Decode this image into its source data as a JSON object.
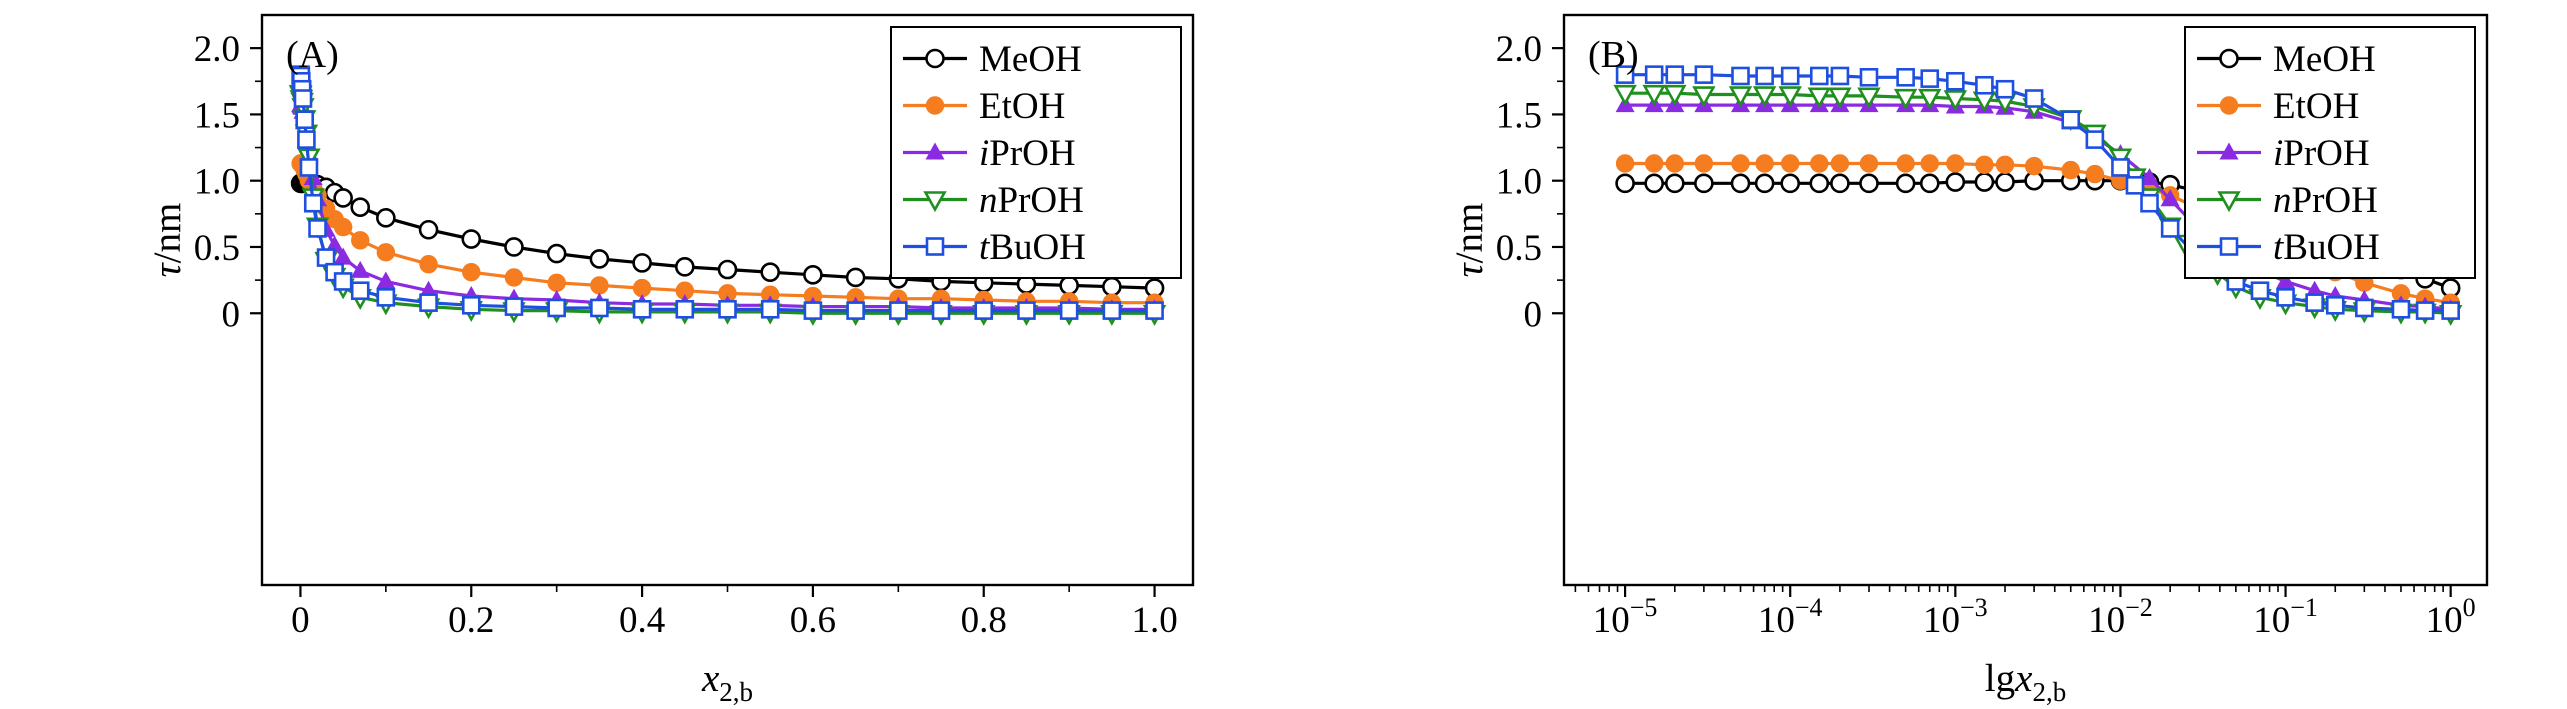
{
  "figure": {
    "background": "#ffffff",
    "font_color": "#000000"
  },
  "chart_data": [
    {
      "id": "A",
      "type": "line",
      "panel_label": "(A)",
      "x_scale": "linear",
      "xlim": [
        -0.045,
        1.045
      ],
      "ylim": [
        -2.05,
        2.25
      ],
      "x_ticks": [
        0,
        0.2,
        0.4,
        0.6,
        0.8,
        1.0
      ],
      "x_tick_labels": [
        "0",
        "0.2",
        "0.4",
        "0.6",
        "0.8",
        "1.0"
      ],
      "y_ticks": [
        0,
        0.5,
        1.0,
        1.5,
        2.0
      ],
      "y_tick_labels": [
        "0",
        "0.5",
        "1.0",
        "1.5",
        "2.0"
      ],
      "xlabel": {
        "roman": "",
        "italic": "x",
        "sub": "2,b"
      },
      "ylabel": {
        "italic": "τ",
        "roman": "/nm"
      },
      "legend_position": "upper right",
      "series": [
        {
          "name": "MeOH",
          "label_italic": "",
          "label_roman": "MeOH",
          "color": "#000000",
          "marker": "circle-open",
          "x": [
            0.0002,
            0.0005,
            0.001,
            0.002,
            0.003,
            0.005,
            0.007,
            0.01,
            0.015,
            0.02,
            0.03,
            0.04,
            0.05,
            0.07,
            0.1,
            0.15,
            0.2,
            0.25,
            0.3,
            0.35,
            0.4,
            0.45,
            0.5,
            0.55,
            0.6,
            0.65,
            0.7,
            0.75,
            0.8,
            0.85,
            0.9,
            0.95,
            1.0
          ],
          "y": [
            0.98,
            0.98,
            0.98,
            0.98,
            0.98,
            0.99,
            0.99,
            0.99,
            0.98,
            0.97,
            0.95,
            0.91,
            0.87,
            0.8,
            0.72,
            0.63,
            0.56,
            0.5,
            0.45,
            0.41,
            0.38,
            0.35,
            0.33,
            0.31,
            0.29,
            0.27,
            0.26,
            0.24,
            0.23,
            0.22,
            0.21,
            0.2,
            0.19
          ]
        },
        {
          "name": "EtOH",
          "label_italic": "",
          "label_roman": "EtOH",
          "color": "#f57c1f",
          "marker": "circle-filled",
          "x": [
            0.0002,
            0.0005,
            0.001,
            0.002,
            0.003,
            0.005,
            0.007,
            0.01,
            0.015,
            0.02,
            0.03,
            0.04,
            0.05,
            0.07,
            0.1,
            0.15,
            0.2,
            0.25,
            0.3,
            0.35,
            0.4,
            0.45,
            0.5,
            0.55,
            0.6,
            0.65,
            0.7,
            0.75,
            0.8,
            0.85,
            0.9,
            0.95,
            1.0
          ],
          "y": [
            1.13,
            1.13,
            1.13,
            1.12,
            1.11,
            1.08,
            1.05,
            1.0,
            0.94,
            0.89,
            0.79,
            0.71,
            0.65,
            0.55,
            0.46,
            0.37,
            0.31,
            0.27,
            0.23,
            0.21,
            0.19,
            0.17,
            0.15,
            0.14,
            0.13,
            0.12,
            0.11,
            0.11,
            0.1,
            0.09,
            0.09,
            0.08,
            0.08
          ]
        },
        {
          "name": "iPrOH",
          "label_italic": "i",
          "label_roman": "PrOH",
          "color": "#8a2be2",
          "marker": "triangle-up-filled",
          "x": [
            0.0002,
            0.0005,
            0.001,
            0.002,
            0.003,
            0.005,
            0.007,
            0.01,
            0.015,
            0.02,
            0.03,
            0.04,
            0.05,
            0.07,
            0.1,
            0.15,
            0.2,
            0.25,
            0.3,
            0.35,
            0.4,
            0.45,
            0.5,
            0.55,
            0.6,
            0.65,
            0.7,
            0.75,
            0.8,
            0.85,
            0.9,
            0.95,
            1.0
          ],
          "y": [
            1.57,
            1.57,
            1.56,
            1.55,
            1.52,
            1.44,
            1.33,
            1.2,
            1.02,
            0.86,
            0.63,
            0.51,
            0.42,
            0.32,
            0.24,
            0.17,
            0.13,
            0.11,
            0.1,
            0.08,
            0.07,
            0.07,
            0.06,
            0.06,
            0.05,
            0.05,
            0.05,
            0.04,
            0.04,
            0.04,
            0.04,
            0.03,
            0.03
          ]
        },
        {
          "name": "nPrOH",
          "label_italic": "n",
          "label_roman": "PrOH",
          "color": "#1f8f1f",
          "marker": "triangle-down-open",
          "x": [
            0.0002,
            0.0005,
            0.001,
            0.002,
            0.003,
            0.005,
            0.007,
            0.01,
            0.015,
            0.02,
            0.03,
            0.04,
            0.05,
            0.07,
            0.1,
            0.15,
            0.2,
            0.25,
            0.3,
            0.35,
            0.4,
            0.45,
            0.5,
            0.55,
            0.6,
            0.65,
            0.7,
            0.75,
            0.8,
            0.85,
            0.9,
            0.95,
            1.0
          ],
          "y": [
            1.66,
            1.65,
            1.62,
            1.6,
            1.56,
            1.47,
            1.36,
            1.18,
            0.88,
            0.66,
            0.4,
            0.28,
            0.2,
            0.12,
            0.08,
            0.05,
            0.03,
            0.02,
            0.02,
            0.01,
            0.01,
            0.01,
            0.01,
            0.01,
            0.0,
            0.0,
            0.0,
            0.0,
            0.0,
            0.0,
            0.0,
            0.0,
            0.0
          ]
        },
        {
          "name": "tBuOH",
          "label_italic": "t",
          "label_roman": "BuOH",
          "color": "#1f4fe0",
          "marker": "square-open",
          "x": [
            0.0002,
            0.0005,
            0.001,
            0.002,
            0.003,
            0.005,
            0.007,
            0.01,
            0.015,
            0.02,
            0.03,
            0.04,
            0.05,
            0.07,
            0.1,
            0.15,
            0.2,
            0.25,
            0.3,
            0.35,
            0.4,
            0.45,
            0.5,
            0.55,
            0.6,
            0.65,
            0.7,
            0.75,
            0.8,
            0.85,
            0.9,
            0.95,
            1.0
          ],
          "y": [
            1.8,
            1.79,
            1.75,
            1.69,
            1.62,
            1.46,
            1.31,
            1.1,
            0.83,
            0.64,
            0.42,
            0.31,
            0.24,
            0.17,
            0.12,
            0.08,
            0.06,
            0.05,
            0.04,
            0.04,
            0.03,
            0.03,
            0.03,
            0.03,
            0.02,
            0.02,
            0.02,
            0.02,
            0.02,
            0.02,
            0.02,
            0.02,
            0.02
          ]
        }
      ]
    },
    {
      "id": "B",
      "type": "line",
      "panel_label": "(B)",
      "x_scale": "log",
      "xlim": [
        -5.37,
        0.22
      ],
      "ylim": [
        -2.05,
        2.25
      ],
      "x_ticks": [
        -5,
        -4,
        -3,
        -2,
        -1,
        0
      ],
      "x_tick_labels": [
        "-5",
        "-4",
        "-3",
        "-2",
        "-1",
        "0"
      ],
      "y_ticks": [
        0,
        0.5,
        1.0,
        1.5,
        2.0
      ],
      "y_tick_labels": [
        "0",
        "0.5",
        "1.0",
        "1.5",
        "2.0"
      ],
      "xlabel": {
        "roman": "lg",
        "italic": "x",
        "sub": "2,b"
      },
      "ylabel": {
        "italic": "τ",
        "roman": "/nm"
      },
      "legend_position": "upper right",
      "series": [
        {
          "name": "MeOH",
          "label_italic": "",
          "label_roman": "MeOH",
          "color": "#000000",
          "marker": "circle-open",
          "x": [
            1e-05,
            1.5e-05,
            2e-05,
            3e-05,
            5e-05,
            7e-05,
            0.0001,
            0.00015,
            0.0002,
            0.0003,
            0.0005,
            0.0007,
            0.001,
            0.0015,
            0.002,
            0.003,
            0.005,
            0.007,
            0.01,
            0.015,
            0.02,
            0.03,
            0.05,
            0.07,
            0.1,
            0.15,
            0.2,
            0.3,
            0.5,
            0.7,
            1.0
          ],
          "y": [
            0.98,
            0.98,
            0.98,
            0.98,
            0.98,
            0.98,
            0.98,
            0.98,
            0.98,
            0.98,
            0.98,
            0.98,
            0.99,
            0.99,
            0.99,
            1.0,
            1.0,
            1.0,
            1.0,
            0.99,
            0.97,
            0.92,
            0.86,
            0.8,
            0.72,
            0.63,
            0.56,
            0.45,
            0.33,
            0.26,
            0.19
          ]
        },
        {
          "name": "EtOH",
          "label_italic": "",
          "label_roman": "EtOH",
          "color": "#f57c1f",
          "marker": "circle-filled",
          "x": [
            1e-05,
            1.5e-05,
            2e-05,
            3e-05,
            5e-05,
            7e-05,
            0.0001,
            0.00015,
            0.0002,
            0.0003,
            0.0005,
            0.0007,
            0.001,
            0.0015,
            0.002,
            0.003,
            0.005,
            0.007,
            0.01,
            0.015,
            0.02,
            0.03,
            0.05,
            0.07,
            0.1,
            0.15,
            0.2,
            0.3,
            0.5,
            0.7,
            1.0
          ],
          "y": [
            1.13,
            1.13,
            1.13,
            1.13,
            1.13,
            1.13,
            1.13,
            1.13,
            1.13,
            1.13,
            1.13,
            1.13,
            1.13,
            1.12,
            1.12,
            1.11,
            1.08,
            1.05,
            1.0,
            0.94,
            0.89,
            0.79,
            0.65,
            0.55,
            0.46,
            0.37,
            0.31,
            0.23,
            0.15,
            0.11,
            0.08
          ]
        },
        {
          "name": "iPrOH",
          "label_italic": "i",
          "label_roman": "PrOH",
          "color": "#8a2be2",
          "marker": "triangle-up-filled",
          "x": [
            1e-05,
            1.5e-05,
            2e-05,
            3e-05,
            5e-05,
            7e-05,
            0.0001,
            0.00015,
            0.0002,
            0.0003,
            0.0005,
            0.0007,
            0.001,
            0.0015,
            0.002,
            0.003,
            0.005,
            0.007,
            0.01,
            0.015,
            0.02,
            0.03,
            0.05,
            0.07,
            0.1,
            0.15,
            0.2,
            0.3,
            0.5,
            0.7,
            1.0
          ],
          "y": [
            1.57,
            1.57,
            1.57,
            1.57,
            1.57,
            1.57,
            1.57,
            1.57,
            1.57,
            1.57,
            1.57,
            1.57,
            1.56,
            1.56,
            1.55,
            1.52,
            1.44,
            1.33,
            1.2,
            1.02,
            0.86,
            0.63,
            0.42,
            0.32,
            0.24,
            0.17,
            0.13,
            0.1,
            0.06,
            0.05,
            0.03
          ]
        },
        {
          "name": "nPrOH",
          "label_italic": "n",
          "label_roman": "PrOH",
          "color": "#1f8f1f",
          "marker": "triangle-down-open",
          "x": [
            1e-05,
            1.5e-05,
            2e-05,
            3e-05,
            5e-05,
            7e-05,
            0.0001,
            0.00015,
            0.0002,
            0.0003,
            0.0005,
            0.0007,
            0.001,
            0.0015,
            0.002,
            0.003,
            0.005,
            0.007,
            0.01,
            0.015,
            0.02,
            0.03,
            0.05,
            0.07,
            0.1,
            0.15,
            0.2,
            0.3,
            0.5,
            0.7,
            1.0
          ],
          "y": [
            1.66,
            1.66,
            1.66,
            1.65,
            1.65,
            1.65,
            1.65,
            1.64,
            1.64,
            1.64,
            1.63,
            1.63,
            1.62,
            1.61,
            1.6,
            1.56,
            1.47,
            1.36,
            1.18,
            0.88,
            0.66,
            0.4,
            0.2,
            0.12,
            0.08,
            0.05,
            0.03,
            0.02,
            0.01,
            0.01,
            0.0
          ]
        },
        {
          "name": "tBuOH",
          "label_italic": "t",
          "label_roman": "BuOH",
          "color": "#1f4fe0",
          "marker": "square-open",
          "x": [
            1e-05,
            1.5e-05,
            2e-05,
            3e-05,
            5e-05,
            7e-05,
            0.0001,
            0.00015,
            0.0002,
            0.0003,
            0.0005,
            0.0007,
            0.001,
            0.0015,
            0.002,
            0.003,
            0.005,
            0.007,
            0.01,
            0.015,
            0.02,
            0.03,
            0.05,
            0.07,
            0.1,
            0.15,
            0.2,
            0.3,
            0.5,
            0.7,
            1.0
          ],
          "y": [
            1.8,
            1.8,
            1.8,
            1.8,
            1.79,
            1.79,
            1.79,
            1.79,
            1.79,
            1.78,
            1.78,
            1.77,
            1.75,
            1.72,
            1.69,
            1.62,
            1.46,
            1.31,
            1.1,
            0.83,
            0.64,
            0.42,
            0.24,
            0.17,
            0.12,
            0.08,
            0.06,
            0.04,
            0.03,
            0.02,
            0.02
          ]
        }
      ]
    }
  ]
}
